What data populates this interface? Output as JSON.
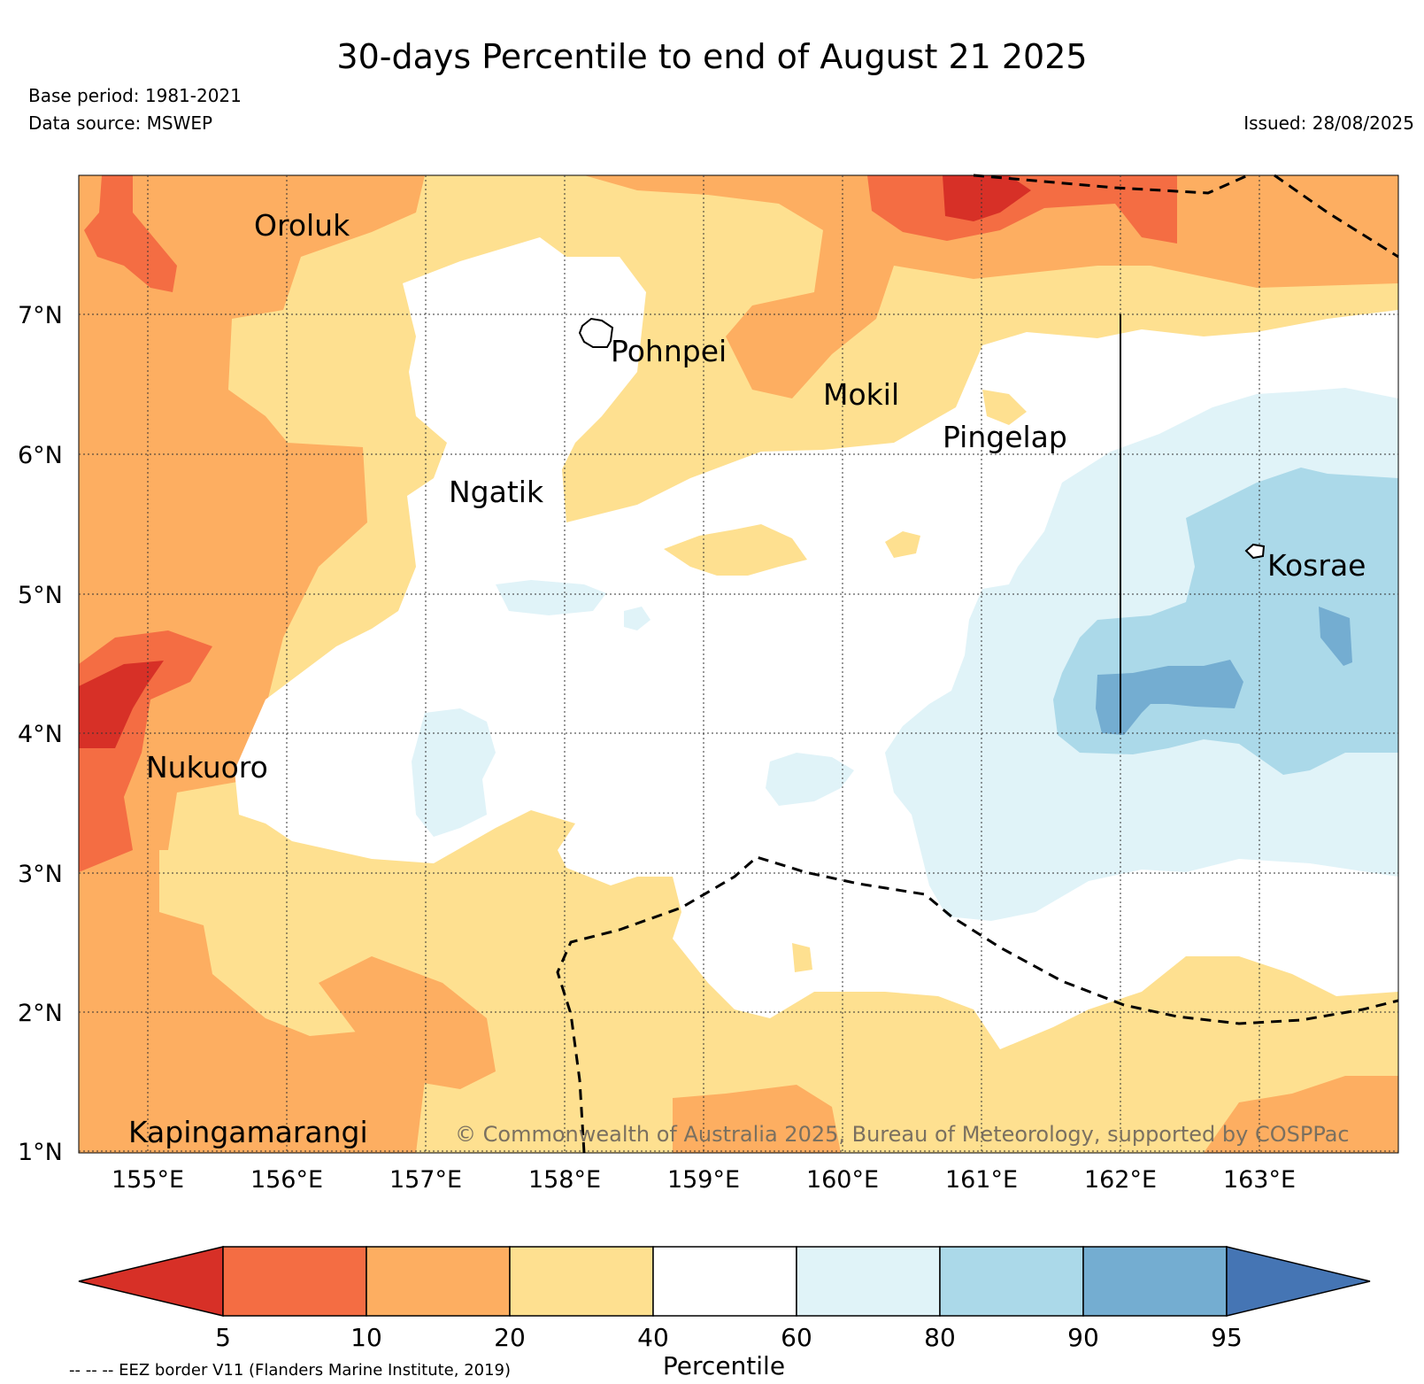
{
  "header": {
    "title": "30-days Percentile to end of August 21 2025",
    "base_period": "Base period: 1981-2021",
    "data_source": "Data source: MSWEP",
    "issued": "Issued: 28/08/2025"
  },
  "map": {
    "lon_ticks": [
      "155°E",
      "156°E",
      "157°E",
      "158°E",
      "159°E",
      "160°E",
      "161°E",
      "162°E",
      "163°E"
    ],
    "lat_ticks": [
      "7°N",
      "6°N",
      "5°N",
      "4°N",
      "3°N",
      "2°N",
      "1°N"
    ],
    "places": [
      "Oroluk",
      "Pohnpei",
      "Mokil",
      "Pingelap",
      "Ngatik",
      "Kosrae",
      "Nukuoro",
      "Kapingamarangi"
    ],
    "copyright": "© Commonwealth of Australia 2025, Bureau of Meteorology, supported by COSPPac"
  },
  "legend": {
    "ticks": [
      "5",
      "10",
      "20",
      "40",
      "60",
      "80",
      "90",
      "95"
    ],
    "label": "Percentile",
    "colors": [
      "#d73027",
      "#f46d43",
      "#fdae61",
      "#fee090",
      "#ffffff",
      "#e0f3f8",
      "#abd9e9",
      "#74add1",
      "#4575b4"
    ],
    "eez_note": "-- -- -- EEZ border V11 (Flanders Marine Institute, 2019)"
  }
}
